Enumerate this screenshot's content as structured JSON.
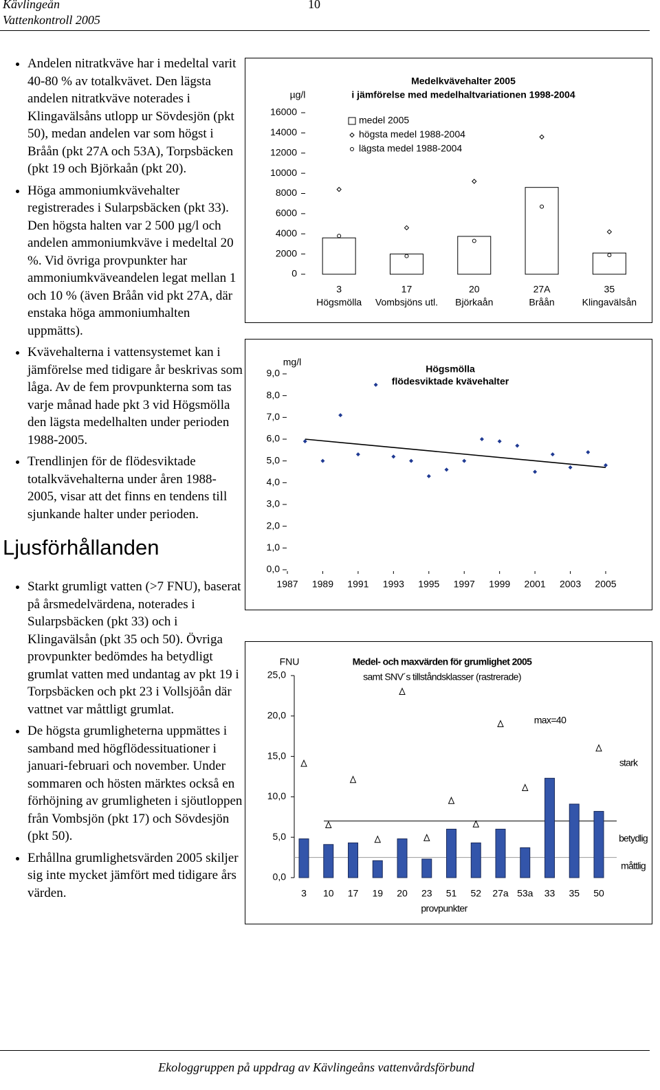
{
  "header": {
    "title": "Kävlingeån",
    "subtitle": "Vattenkontroll 2005",
    "page": "10"
  },
  "bullets_1": [
    "Andelen nitratkväve har i medeltal varit 40-80 % av totalkvävet. Den lägsta andelen nitratkväve noterades i Klingavälsåns utlopp ur Sövdesjön (pkt 50), medan andelen var som högst i Bråån (pkt 27A och 53A), Torpsbäcken (pkt 19 och Björkaån (pkt 20).",
    "Höga ammoniumkvävehalter registrerades i Sularpsbäcken (pkt 33). Den högsta halten var 2 500 µg/l och andelen ammoniumkväve i medeltal 20 %. Vid övriga provpunkter har ammoniumkväveandelen legat mellan 1 och 10 % (även Bråån vid pkt 27A, där enstaka höga ammoniumhalten uppmätts).",
    "Kvävehalterna i vattensystemet kan i jämförelse med tidigare år beskrivas som låga. Av de fem provpunkterna som tas varje månad hade pkt 3 vid Högsmölla den lägsta medelhalten under perioden 1988-2005.",
    "Trendlinjen för de flödesviktade totalkvävehalterna under åren 1988-2005, visar att det finns en tendens till sjunkande halter under perioden."
  ],
  "heading": "Ljusförhållanden",
  "bullets_2": [
    "Starkt grumligt vatten (>7 FNU), baserat på årsmedelvärdena, noterades i Sularpsbäcken (pkt 33) och i Klingavälsån (pkt 35 och 50). Övriga provpunkter bedömdes ha betydligt grumlat vatten med undantag av pkt 19 i Torpsbäcken och pkt 23 i Vollsjöån där vattnet var måttligt grumlat.",
    "De högsta grumligheterna uppmättes i samband med högflödessituationer i januari-februari och november. Under sommaren och hösten märktes också en förhöjning av grumligheten i sjöutloppen från Vombsjön (pkt 17) och Sövdesjön (pkt 50).",
    "Erhållna grumlighetsvärden 2005 skiljer sig inte mycket jämfört med tidigare års värden."
  ],
  "footer": "Ekologgruppen på uppdrag av Kävlingeåns vattenvårdsförbund",
  "chart_data": [
    {
      "type": "bar",
      "title": "Medelkvävehalter 2005",
      "subtitle": "i jämförelse med medelhaltvariationen 1998-2004",
      "y_label": "µg/l",
      "categories": [
        "3",
        "17",
        "20",
        "27A",
        "35"
      ],
      "category_names": [
        "Högsmölla",
        "Vombsjöns utl.",
        "Björkaån",
        "Bråån",
        "Klingavälsån"
      ],
      "series": [
        {
          "name": "medel 2005",
          "kind": "bar",
          "color": "#ffffff",
          "values": [
            3600,
            2000,
            3750,
            8600,
            2100
          ]
        },
        {
          "name": "högsta medel 1988-2004",
          "kind": "diamond",
          "color": "#ffffff",
          "values": [
            8400,
            4600,
            9200,
            13600,
            4200
          ]
        },
        {
          "name": "lägsta medel 1988-2004",
          "kind": "circle",
          "color": "#ffffff",
          "values": [
            3800,
            1800,
            3300,
            6700,
            1900
          ]
        }
      ],
      "ylim": [
        0,
        16000
      ],
      "yticks": [
        0,
        2000,
        4000,
        6000,
        8000,
        10000,
        12000,
        14000,
        16000
      ]
    },
    {
      "type": "scatter",
      "title": "Högsmölla",
      "subtitle": "flödesviktade kvävehalter",
      "y_label": "mg/l",
      "x": [
        1988,
        1989,
        1990,
        1991,
        1992,
        1993,
        1994,
        1995,
        1996,
        1997,
        1998,
        1999,
        2000,
        2001,
        2002,
        2003,
        2004,
        2005
      ],
      "values": [
        5.9,
        5.0,
        7.1,
        5.3,
        8.5,
        5.2,
        5.0,
        4.3,
        4.6,
        5.0,
        6.0,
        5.9,
        5.7,
        4.5,
        5.3,
        4.7,
        5.4,
        4.8
      ],
      "color": "#1f3a93",
      "trend": {
        "x": [
          1988,
          2005
        ],
        "values": [
          6.0,
          4.7
        ],
        "color": "#000000"
      },
      "xlim": [
        1987,
        2005
      ],
      "xticks": [
        1987,
        1989,
        1991,
        1993,
        1995,
        1997,
        1999,
        2001,
        2003,
        2005
      ],
      "ylim": [
        0,
        9
      ],
      "yticks": [
        {
          "value": 0,
          "label": "0,0"
        },
        {
          "value": 1,
          "label": "1,0"
        },
        {
          "value": 2,
          "label": "2,0"
        },
        {
          "value": 3,
          "label": "3,0"
        },
        {
          "value": 4,
          "label": "4,0"
        },
        {
          "value": 5,
          "label": "5,0"
        },
        {
          "value": 6,
          "label": "6,0"
        },
        {
          "value": 7,
          "label": "7,0"
        },
        {
          "value": 8,
          "label": "8,0"
        },
        {
          "value": 9,
          "label": "9,0"
        }
      ]
    },
    {
      "type": "bar",
      "title": "Medel- och maxvärden för grumlighet 2005",
      "subtitle": "samt SNV´s tillståndsklasser (rastrerade)",
      "y_label": "FNU",
      "x_label": "provpunkter",
      "categories": [
        "3",
        "10",
        "17",
        "19",
        "20",
        "23",
        "51",
        "52",
        "27a",
        "53a",
        "33",
        "35",
        "50"
      ],
      "values": [
        4.8,
        4.1,
        4.3,
        2.1,
        4.8,
        2.3,
        6.0,
        4.3,
        6.0,
        3.7,
        12.3,
        9.1,
        8.2
      ],
      "color": "#3355aa",
      "max_values": [
        14.1,
        6.5,
        12.1,
        4.7,
        23.0,
        4.9,
        9.5,
        6.6,
        19.0,
        11.1,
        null,
        null,
        16.0
      ],
      "annotation": "max=40",
      "class_limits": [
        7.0,
        2.5
      ],
      "class_labels": [
        "stark",
        "betydlig",
        "måttlig"
      ],
      "ylim": [
        0,
        25
      ],
      "yticks": [
        {
          "value": 0,
          "label": "0,0"
        },
        {
          "value": 5,
          "label": "5,0"
        },
        {
          "value": 10,
          "label": "10,0"
        },
        {
          "value": 15,
          "label": "15,0"
        },
        {
          "value": 20,
          "label": "20,0"
        },
        {
          "value": 25,
          "label": "25,0"
        }
      ]
    }
  ]
}
